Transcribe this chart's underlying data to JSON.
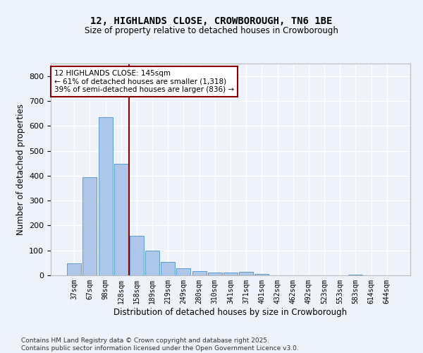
{
  "title1": "12, HIGHLANDS CLOSE, CROWBOROUGH, TN6 1BE",
  "title2": "Size of property relative to detached houses in Crowborough",
  "xlabel": "Distribution of detached houses by size in Crowborough",
  "ylabel": "Number of detached properties",
  "categories": [
    "37sqm",
    "67sqm",
    "98sqm",
    "128sqm",
    "158sqm",
    "189sqm",
    "219sqm",
    "249sqm",
    "280sqm",
    "310sqm",
    "341sqm",
    "371sqm",
    "401sqm",
    "432sqm",
    "462sqm",
    "492sqm",
    "523sqm",
    "553sqm",
    "583sqm",
    "614sqm",
    "644sqm"
  ],
  "values": [
    48,
    393,
    634,
    447,
    160,
    100,
    55,
    28,
    17,
    12,
    11,
    13,
    5,
    0,
    0,
    0,
    0,
    0,
    4,
    0,
    0
  ],
  "bar_color": "#aec6e8",
  "bar_edge_color": "#5a9fd4",
  "vline_x": 3.5,
  "vline_color": "#8b0000",
  "annotation_text": "12 HIGHLANDS CLOSE: 145sqm\n← 61% of detached houses are smaller (1,318)\n39% of semi-detached houses are larger (836) →",
  "annotation_box_color": "#8b0000",
  "ylim": [
    0,
    850
  ],
  "yticks": [
    0,
    100,
    200,
    300,
    400,
    500,
    600,
    700,
    800
  ],
  "background_color": "#eef2fb",
  "grid_color": "#ffffff",
  "footer1": "Contains HM Land Registry data © Crown copyright and database right 2025.",
  "footer2": "Contains public sector information licensed under the Open Government Licence v3.0."
}
